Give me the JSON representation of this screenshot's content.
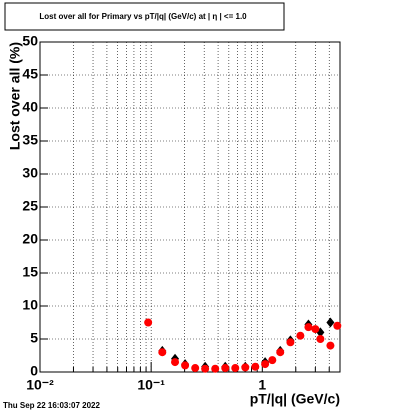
{
  "chart_data": {
    "type": "scatter",
    "title": "Lost over all for Primary vs pT/|q| (GeV/c) at |  η  | <= 1.0",
    "xlabel": "pT/|q| (GeV/c)",
    "ylabel": "Lost over all (%)",
    "footer": "Thu Sep 22 16:03:07 2022",
    "xlog": true,
    "grid": true,
    "xlim": [
      0.01,
      5
    ],
    "ylim": [
      0,
      50
    ],
    "xticks": [
      {
        "value": 0.01,
        "label": "10⁻²"
      },
      {
        "value": 0.1,
        "label": "10⁻¹"
      },
      1
    ],
    "xminorticks": [
      0.02,
      0.03,
      0.04,
      0.05,
      0.06,
      0.07,
      0.08,
      0.09,
      0.2,
      0.3,
      0.4,
      0.5,
      0.6,
      0.7,
      0.8,
      0.9,
      2,
      3,
      4,
      5
    ],
    "yticks": [
      0,
      5,
      10,
      15,
      20,
      25,
      30,
      35,
      40,
      45,
      50
    ],
    "series": [
      {
        "color": "#000000",
        "marker": "diamond",
        "x": [
          0.126,
          0.164,
          0.202,
          0.306,
          0.464,
          0.703,
          1.06,
          1.45,
          1.79,
          2.6,
          3.33,
          4.1
        ],
        "values": [
          3.2,
          2.0,
          1.2,
          0.8,
          0.8,
          0.8,
          1.5,
          3.2,
          4.8,
          7.2,
          6.0,
          7.5
        ]
      },
      {
        "color": "#ff0000",
        "marker": "circle",
        "x": [
          0.094,
          0.126,
          0.164,
          0.202,
          0.249,
          0.306,
          0.377,
          0.464,
          0.571,
          0.703,
          0.865,
          1.06,
          1.23,
          1.45,
          1.79,
          2.2,
          2.6,
          3.0,
          3.33,
          4.1,
          4.73
        ],
        "values": [
          7.5,
          3.0,
          1.5,
          1.0,
          0.6,
          0.5,
          0.5,
          0.6,
          0.6,
          0.7,
          0.8,
          1.2,
          1.8,
          3.0,
          4.5,
          5.5,
          6.8,
          6.5,
          5.0,
          4.0,
          7.0
        ]
      }
    ]
  }
}
